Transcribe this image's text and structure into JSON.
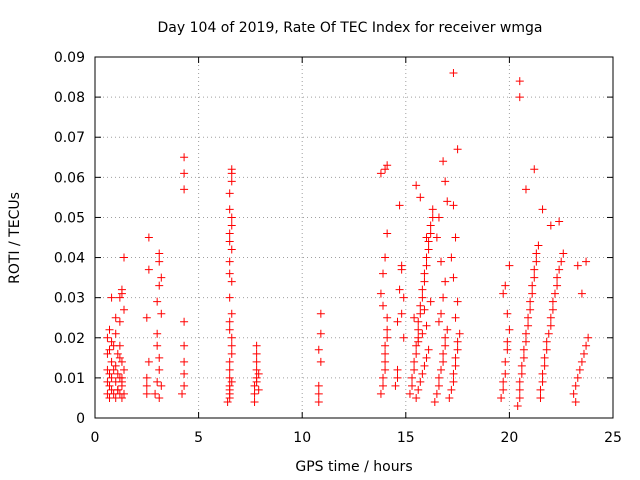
{
  "chart_data": {
    "type": "scatter",
    "title": "Day 104 of 2019, Rate Of TEC Index for receiver wmga",
    "xlabel": "GPS time / hours",
    "ylabel": "ROTI / TECUs",
    "xlim": [
      0,
      25
    ],
    "ylim": [
      0,
      0.09
    ],
    "xticks": [
      "0",
      "5",
      "10",
      "15",
      "20",
      "25"
    ],
    "yticks": [
      "0",
      "0.01",
      "0.02",
      "0.03",
      "0.04",
      "0.05",
      "0.06",
      "0.07",
      "0.08",
      "0.09"
    ],
    "grid": true,
    "marker": "+",
    "color": "#ff0000",
    "series": [
      {
        "x": [
          0.6,
          0.6,
          0.6,
          0.6,
          0.6,
          0.7,
          0.7,
          0.7,
          0.7,
          0.7,
          0.8,
          0.8,
          0.8,
          0.8,
          0.9,
          0.9,
          0.9,
          1.0,
          1.0,
          1.0,
          1.0,
          1.1,
          1.1,
          1.1,
          1.2,
          1.2,
          1.2,
          1.2,
          1.3,
          1.3,
          1.3,
          1.3,
          1.4,
          1.4,
          1.4,
          1.3,
          1.2,
          1.4,
          1.3,
          1.1,
          0.8,
          1.0,
          1.2,
          1.3,
          2.5,
          2.5,
          2.6,
          2.5,
          2.6,
          2.6,
          2.5,
          2.9,
          3.0,
          3.1,
          3.1,
          3.0,
          3.2,
          3.2,
          3.1,
          3.1,
          3.0,
          3.2,
          3.1,
          3.0,
          3.1,
          4.2,
          4.3,
          4.3,
          4.3,
          4.3,
          4.3,
          4.3,
          4.3,
          4.3,
          6.4,
          6.5,
          6.5,
          6.5,
          6.5,
          6.5,
          6.6,
          6.6,
          6.6,
          6.5,
          6.5,
          6.6,
          6.5,
          6.6,
          6.5,
          6.6,
          6.5,
          6.5,
          6.6,
          6.6,
          6.5,
          6.5,
          6.6,
          6.6,
          6.6,
          6.5,
          6.5,
          6.6,
          6.5,
          7.7,
          7.7,
          7.7,
          7.8,
          7.8,
          7.8,
          7.8,
          7.8,
          7.8,
          7.9,
          7.9,
          10.8,
          10.8,
          10.8,
          10.8,
          10.9,
          10.9,
          10.9,
          13.8,
          13.9,
          13.9,
          14.0,
          14.0,
          14.0,
          14.0,
          14.1,
          14.1,
          14.1,
          13.9,
          13.8,
          13.9,
          14.0,
          14.1,
          13.8,
          14.0,
          14.1,
          14.5,
          14.6,
          14.6,
          14.7,
          14.8,
          14.8,
          14.9,
          14.9,
          14.7,
          14.8,
          14.6,
          15.2,
          15.3,
          15.3,
          15.4,
          15.4,
          15.5,
          15.5,
          15.6,
          15.6,
          15.6,
          15.7,
          15.7,
          15.8,
          15.8,
          15.9,
          15.9,
          16.0,
          16.0,
          16.1,
          16.1,
          16.2,
          16.2,
          16.3,
          16.3,
          15.5,
          15.6,
          15.7,
          15.8,
          15.9,
          16.0,
          16.1,
          15.6,
          15.8,
          16.0,
          15.4,
          15.9,
          16.2,
          15.7,
          15.5,
          16.0,
          16.4,
          16.5,
          16.6,
          16.6,
          16.7,
          16.8,
          16.8,
          16.9,
          16.9,
          17.0,
          16.6,
          16.7,
          16.8,
          16.9,
          16.7,
          16.5,
          16.6,
          17.0,
          16.9,
          16.8,
          17.1,
          17.2,
          17.3,
          17.3,
          17.4,
          17.4,
          17.5,
          17.5,
          17.6,
          17.4,
          17.5,
          17.3,
          17.2,
          17.4,
          17.3,
          17.5,
          19.6,
          19.7,
          19.7,
          19.8,
          19.8,
          19.9,
          19.9,
          20.0,
          19.7,
          19.8,
          20.0,
          19.9,
          20.4,
          20.5,
          20.5,
          20.5,
          20.6,
          20.6,
          20.7,
          20.7,
          20.8,
          20.8,
          20.9,
          20.9,
          21.0,
          21.0,
          21.1,
          21.1,
          21.2,
          21.2,
          21.3,
          21.3,
          21.4,
          21.5,
          21.5,
          21.6,
          21.6,
          21.7,
          21.7,
          21.8,
          21.8,
          21.9,
          22.0,
          22.0,
          22.1,
          22.1,
          22.2,
          22.3,
          22.3,
          22.4,
          22.5,
          22.6,
          20.8,
          21.2,
          21.6,
          22.0,
          22.4,
          23.1,
          23.2,
          23.3,
          23.4,
          23.5,
          23.6,
          23.7,
          23.8,
          23.3,
          23.5,
          23.7,
          23.2
        ],
        "y": [
          0.006,
          0.009,
          0.012,
          0.016,
          0.02,
          0.005,
          0.008,
          0.011,
          0.017,
          0.022,
          0.007,
          0.01,
          0.014,
          0.019,
          0.006,
          0.012,
          0.018,
          0.005,
          0.009,
          0.013,
          0.021,
          0.007,
          0.011,
          0.016,
          0.006,
          0.01,
          0.015,
          0.024,
          0.005,
          0.008,
          0.014,
          0.031,
          0.006,
          0.012,
          0.027,
          0.032,
          0.03,
          0.04,
          0.009,
          0.007,
          0.03,
          0.025,
          0.018,
          0.01,
          0.006,
          0.008,
          0.014,
          0.025,
          0.037,
          0.045,
          0.01,
          0.006,
          0.009,
          0.012,
          0.015,
          0.018,
          0.026,
          0.035,
          0.039,
          0.041,
          0.021,
          0.008,
          0.005,
          0.029,
          0.033,
          0.006,
          0.008,
          0.011,
          0.014,
          0.018,
          0.024,
          0.057,
          0.061,
          0.065,
          0.004,
          0.006,
          0.008,
          0.01,
          0.012,
          0.014,
          0.016,
          0.018,
          0.02,
          0.022,
          0.024,
          0.026,
          0.03,
          0.034,
          0.039,
          0.042,
          0.044,
          0.046,
          0.048,
          0.05,
          0.052,
          0.056,
          0.059,
          0.061,
          0.062,
          0.005,
          0.007,
          0.009,
          0.036,
          0.004,
          0.006,
          0.008,
          0.01,
          0.012,
          0.014,
          0.016,
          0.018,
          0.009,
          0.007,
          0.011,
          0.004,
          0.006,
          0.008,
          0.017,
          0.014,
          0.021,
          0.026,
          0.006,
          0.008,
          0.01,
          0.012,
          0.014,
          0.016,
          0.018,
          0.02,
          0.022,
          0.025,
          0.028,
          0.031,
          0.036,
          0.04,
          0.046,
          0.061,
          0.062,
          0.063,
          0.008,
          0.01,
          0.024,
          0.032,
          0.038,
          0.026,
          0.02,
          0.03,
          0.053,
          0.037,
          0.012,
          0.006,
          0.008,
          0.01,
          0.012,
          0.014,
          0.016,
          0.018,
          0.02,
          0.022,
          0.024,
          0.026,
          0.028,
          0.03,
          0.032,
          0.034,
          0.036,
          0.038,
          0.04,
          0.042,
          0.044,
          0.046,
          0.048,
          0.05,
          0.052,
          0.005,
          0.007,
          0.009,
          0.011,
          0.013,
          0.015,
          0.017,
          0.019,
          0.021,
          0.023,
          0.025,
          0.027,
          0.029,
          0.055,
          0.058,
          0.045,
          0.004,
          0.006,
          0.008,
          0.01,
          0.012,
          0.014,
          0.016,
          0.018,
          0.02,
          0.022,
          0.024,
          0.026,
          0.03,
          0.034,
          0.039,
          0.045,
          0.05,
          0.054,
          0.059,
          0.064,
          0.005,
          0.007,
          0.009,
          0.011,
          0.013,
          0.015,
          0.017,
          0.019,
          0.021,
          0.025,
          0.029,
          0.035,
          0.04,
          0.045,
          0.053,
          0.067,
          0.005,
          0.007,
          0.009,
          0.011,
          0.014,
          0.017,
          0.019,
          0.022,
          0.031,
          0.033,
          0.038,
          0.026,
          0.003,
          0.005,
          0.007,
          0.009,
          0.011,
          0.013,
          0.015,
          0.017,
          0.019,
          0.021,
          0.023,
          0.025,
          0.027,
          0.029,
          0.031,
          0.033,
          0.035,
          0.037,
          0.039,
          0.041,
          0.043,
          0.005,
          0.007,
          0.009,
          0.011,
          0.013,
          0.015,
          0.017,
          0.019,
          0.021,
          0.023,
          0.025,
          0.027,
          0.029,
          0.031,
          0.033,
          0.035,
          0.037,
          0.039,
          0.041,
          0.057,
          0.062,
          0.052,
          0.048,
          0.049,
          0.006,
          0.008,
          0.01,
          0.012,
          0.014,
          0.016,
          0.018,
          0.02,
          0.038,
          0.031,
          0.039,
          0.004
        ]
      },
      {
        "x": [
          17.3,
          20.5,
          20.5
        ],
        "y": [
          0.086,
          0.084,
          0.08
        ]
      }
    ]
  }
}
